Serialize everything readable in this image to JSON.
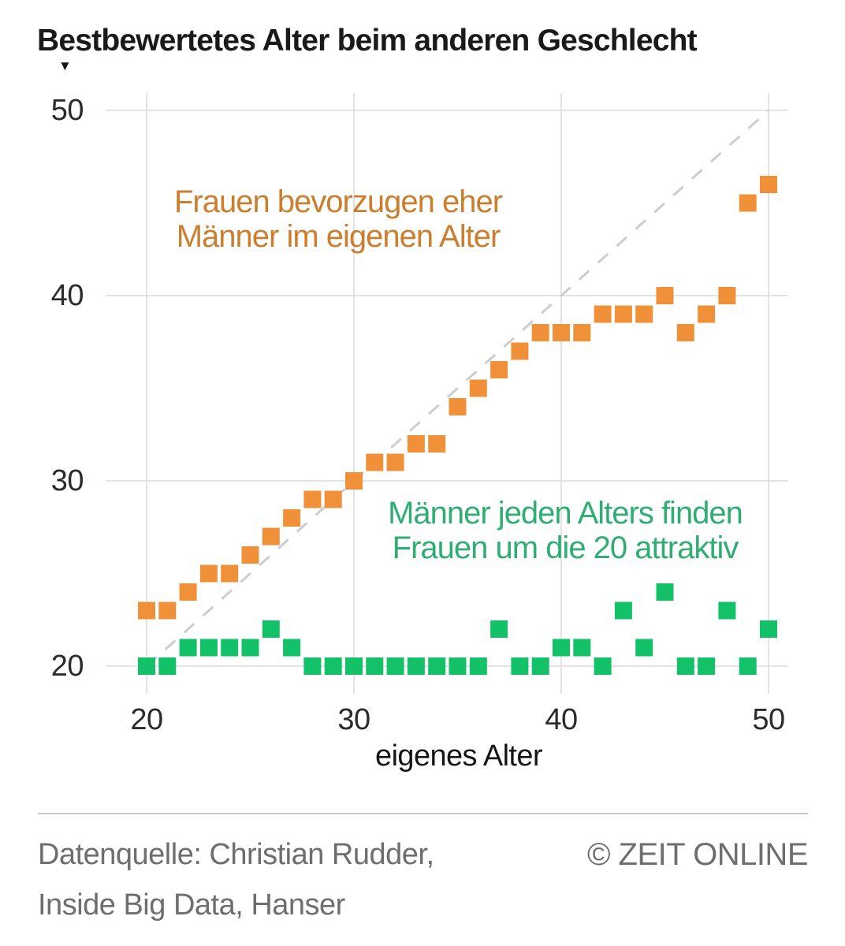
{
  "title": "Bestbewertetes Alter beim anderen Geschlecht",
  "title_pointer": "▼",
  "axes": {
    "xlabel": "eigenes Alter",
    "x_ticks": [
      "20",
      "30",
      "40",
      "50"
    ],
    "y_ticks": [
      "50",
      "40",
      "30",
      "20"
    ]
  },
  "annotations": {
    "orange": {
      "line1": "Frauen bevorzugen eher",
      "line2": "Männer im eigenen Alter",
      "color": "#CB7E2E"
    },
    "green": {
      "line1": "Männer jeden Alters finden",
      "line2": "Frauen um die 20 attraktiv",
      "color": "#2FAD72"
    }
  },
  "footer": {
    "source_line1": "Datenquelle: Christian Rudder,",
    "source_line2": "Inside Big Data, Hanser",
    "copyright": "© ZEIT ONLINE"
  },
  "colors": {
    "orange_marker": "#F0913A",
    "green_marker": "#13C169",
    "grid": "#dcdcdc",
    "diagonal": "#cdcdcd",
    "background": "#ffffff"
  },
  "chart_data": {
    "type": "scatter",
    "marker": "square",
    "title": "Bestbewertetes Alter beim anderen Geschlecht",
    "xlabel": "eigenes Alter",
    "ylabel": "Bestbewertetes Alter beim anderen Geschlecht",
    "xlim": [
      20,
      50
    ],
    "ylim": [
      20,
      50
    ],
    "x_ticks": [
      20,
      30,
      40,
      50
    ],
    "y_ticks": [
      20,
      30,
      40,
      50
    ],
    "grid": true,
    "diagonal_reference_line": {
      "from": [
        20,
        20
      ],
      "to": [
        50,
        50
      ],
      "style": "dashed"
    },
    "x": [
      20,
      21,
      22,
      23,
      24,
      25,
      26,
      27,
      28,
      29,
      30,
      31,
      32,
      33,
      34,
      35,
      36,
      37,
      38,
      39,
      40,
      41,
      42,
      43,
      44,
      45,
      46,
      47,
      48,
      49,
      50
    ],
    "series": [
      {
        "name": "frauen-bewerten-maenner",
        "annotation": "Frauen bevorzugen eher Männer im eigenen Alter",
        "color": "#F0913A",
        "values": [
          23,
          23,
          24,
          25,
          25,
          26,
          27,
          28,
          29,
          29,
          30,
          31,
          31,
          32,
          32,
          34,
          35,
          36,
          37,
          38,
          38,
          38,
          39,
          39,
          39,
          40,
          38,
          39,
          40,
          45,
          46
        ]
      },
      {
        "name": "maenner-bewerten-frauen",
        "annotation": "Männer jeden Alters finden Frauen um die 20 attraktiv",
        "color": "#13C169",
        "values": [
          20,
          20,
          21,
          21,
          21,
          21,
          22,
          21,
          20,
          20,
          20,
          20,
          20,
          20,
          20,
          20,
          20,
          22,
          20,
          20,
          21,
          21,
          20,
          23,
          21,
          24,
          20,
          20,
          23,
          20,
          22
        ]
      }
    ]
  }
}
